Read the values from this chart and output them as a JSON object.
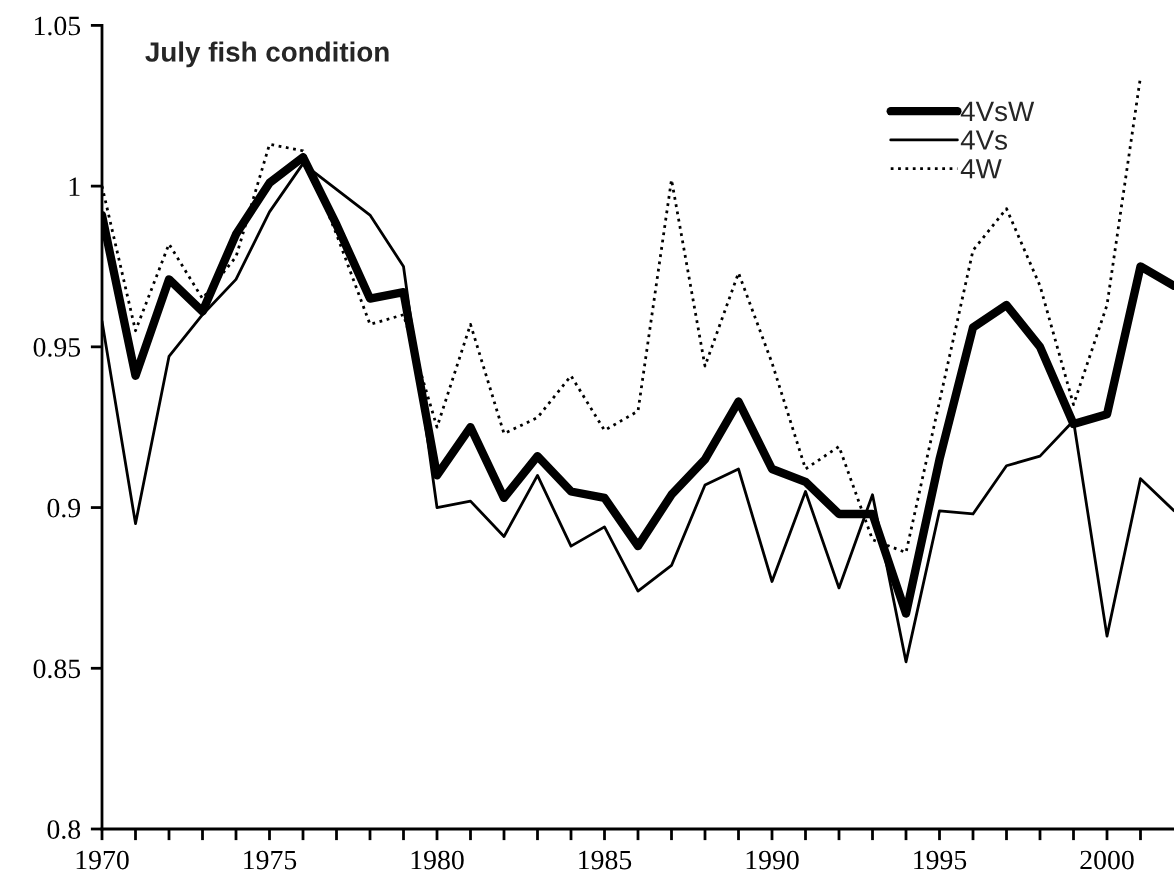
{
  "chart_data": {
    "type": "line",
    "title": "July fish condition",
    "x": [
      1970,
      1971,
      1972,
      1973,
      1974,
      1975,
      1976,
      1977,
      1978,
      1979,
      1980,
      1981,
      1982,
      1983,
      1984,
      1985,
      1986,
      1987,
      1988,
      1989,
      1990,
      1991,
      1992,
      1993,
      1994,
      1995,
      1996,
      1997,
      1998,
      1999,
      2000,
      2001,
      2002
    ],
    "series": [
      {
        "name": "4VsW",
        "color": "#000000",
        "line_style": "solid",
        "values": [
          0.991,
          0.941,
          0.971,
          0.961,
          0.985,
          1.001,
          1.009,
          0.988,
          0.965,
          0.967,
          0.91,
          0.925,
          0.903,
          0.916,
          0.905,
          0.903,
          0.888,
          0.904,
          0.915,
          0.933,
          0.912,
          0.908,
          0.898,
          0.898,
          0.867,
          0.915,
          0.956,
          0.963,
          0.95,
          0.926,
          0.929,
          0.975,
          0.969
        ]
      },
      {
        "name": "4Vs",
        "color": "#000000",
        "line_style": "solid",
        "values": [
          0.958,
          0.895,
          0.947,
          0.96,
          0.971,
          0.992,
          1.007,
          0.999,
          0.991,
          0.975,
          0.9,
          0.902,
          0.891,
          0.91,
          0.888,
          0.894,
          0.874,
          0.882,
          0.907,
          0.912,
          0.877,
          0.905,
          0.875,
          0.904,
          0.852,
          0.899,
          0.898,
          0.913,
          0.916,
          0.927,
          0.86,
          0.909,
          0.899
        ]
      },
      {
        "name": "4W",
        "color": "#000000",
        "line_style": "dotted",
        "values": [
          1.0,
          0.955,
          0.982,
          0.965,
          0.978,
          1.013,
          1.011,
          0.985,
          0.957,
          0.96,
          0.925,
          0.957,
          0.923,
          0.928,
          0.941,
          0.924,
          0.93,
          1.002,
          0.944,
          0.973,
          0.945,
          0.912,
          0.919,
          0.89,
          0.886,
          0.933,
          0.98,
          0.993,
          0.969,
          0.932,
          0.963,
          1.034,
          null
        ]
      }
    ],
    "xlim": [
      1970,
      2002
    ],
    "xticks": [
      1970,
      {
        "value": 1971,
        "label": null
      },
      {
        "value": 1972,
        "label": null
      },
      {
        "value": 1973,
        "label": null
      },
      {
        "value": 1974,
        "label": null
      },
      1975,
      {
        "value": 1976,
        "label": null
      },
      {
        "value": 1977,
        "label": null
      },
      {
        "value": 1978,
        "label": null
      },
      {
        "value": 1979,
        "label": null
      },
      1980,
      {
        "value": 1981,
        "label": null
      },
      {
        "value": 1982,
        "label": null
      },
      {
        "value": 1983,
        "label": null
      },
      {
        "value": 1984,
        "label": null
      },
      1985,
      {
        "value": 1986,
        "label": null
      },
      {
        "value": 1987,
        "label": null
      },
      {
        "value": 1988,
        "label": null
      },
      {
        "value": 1989,
        "label": null
      },
      1990,
      {
        "value": 1991,
        "label": null
      },
      {
        "value": 1992,
        "label": null
      },
      {
        "value": 1993,
        "label": null
      },
      {
        "value": 1994,
        "label": null
      },
      1995,
      {
        "value": 1996,
        "label": null
      },
      {
        "value": 1997,
        "label": null
      },
      {
        "value": 1998,
        "label": null
      },
      {
        "value": 1999,
        "label": null
      },
      2000,
      {
        "value": 2001,
        "label": null
      }
    ],
    "ylim": [
      0.8,
      1.05
    ],
    "yticks": [
      0.8,
      0.85,
      0.9,
      0.95,
      1,
      1.05
    ],
    "grid": false,
    "legend": "top right",
    "marker": "none"
  }
}
